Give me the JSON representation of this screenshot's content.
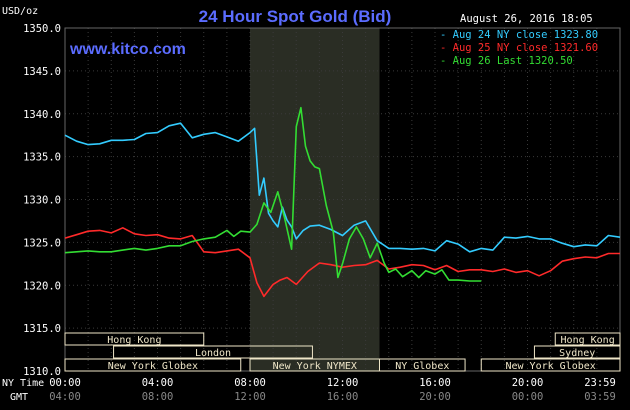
{
  "chart_data": {
    "type": "line",
    "title": "24 Hour Spot Gold (Bid)",
    "timestamp": "August 26, 2016 18:05",
    "watermark": "www.kitco.com",
    "y_unit_label": "USD/oz",
    "ylim": [
      1310,
      1350
    ],
    "y_ticks": [
      "1350.0",
      "1345.0",
      "1340.0",
      "1335.0",
      "1330.0",
      "1325.0",
      "1320.0",
      "1315.0",
      "1310.0"
    ],
    "x_axis_labels": {
      "row1_label": "NY Time",
      "row2_label": "GMT",
      "ny_time": [
        "00:00",
        "04:00",
        "08:00",
        "12:00",
        "16:00",
        "20:00",
        "23:59"
      ],
      "gmt": [
        "04:00",
        "08:00",
        "12:00",
        "16:00",
        "20:00",
        "00:00",
        "03:59"
      ]
    },
    "legend": [
      {
        "label": "Aug 24 NY close 1323.80",
        "color": "#33ccff"
      },
      {
        "label": "Aug 25 NY close 1321.60",
        "color": "#ff2a2a"
      },
      {
        "label": "Aug 26 Last 1320.50",
        "color": "#33dd33"
      }
    ],
    "sessions": {
      "row1": [
        "Hong Kong",
        "Hong Kong"
      ],
      "row2": [
        "London",
        "Sydney"
      ],
      "row3": [
        "New York Globex",
        "New York NYMEX",
        "NY Globex",
        "New York Globex"
      ]
    },
    "series": [
      {
        "name": "Aug 24",
        "color": "#33ccff",
        "x_hours": [
          0,
          0.5,
          1,
          1.5,
          2,
          2.5,
          3,
          3.5,
          4,
          4.5,
          5,
          5.5,
          6,
          6.5,
          7,
          7.5,
          8,
          8.2,
          8.4,
          8.6,
          8.8,
          9,
          9.2,
          9.4,
          9.6,
          9.8,
          10,
          10.3,
          10.6,
          11,
          11.5,
          12,
          12.5,
          13,
          13.5,
          14,
          14.5,
          15,
          15.5,
          16,
          16.5,
          17,
          17.5,
          18,
          18.5,
          19,
          19.5,
          20,
          20.5,
          21,
          21.5,
          22,
          22.5,
          23,
          23.5,
          24
        ],
        "values": [
          1337.5,
          1336.8,
          1336.4,
          1336.5,
          1336.9,
          1336.9,
          1337.0,
          1337.7,
          1337.8,
          1338.6,
          1338.9,
          1337.2,
          1337.6,
          1337.8,
          1337.3,
          1336.8,
          1337.8,
          1338.3,
          1330.5,
          1332.5,
          1328.4,
          1327.5,
          1326.8,
          1329.1,
          1327.6,
          1326.8,
          1325.4,
          1326.4,
          1326.9,
          1327.0,
          1326.5,
          1325.8,
          1327.0,
          1327.5,
          1325.2,
          1324.3,
          1324.3,
          1324.2,
          1324.3,
          1324.0,
          1325.2,
          1324.8,
          1323.9,
          1324.3,
          1324.1,
          1325.6,
          1325.5,
          1325.7,
          1325.4,
          1325.4,
          1324.9,
          1324.5,
          1324.7,
          1324.6,
          1325.8,
          1325.6
        ]
      },
      {
        "name": "Aug 25",
        "color": "#ff2a2a",
        "x_hours": [
          0,
          0.5,
          1,
          1.5,
          2,
          2.5,
          3,
          3.5,
          4,
          4.5,
          5,
          5.5,
          6,
          6.5,
          7,
          7.5,
          8,
          8.3,
          8.6,
          9,
          9.3,
          9.6,
          10,
          10.5,
          11,
          11.5,
          12,
          12.5,
          13,
          13.5,
          14,
          14.5,
          15,
          15.5,
          16,
          16.5,
          17,
          17.5,
          18,
          18.5,
          19,
          19.5,
          20,
          20.5,
          21,
          21.5,
          22,
          22.5,
          23,
          23.5,
          24
        ],
        "values": [
          1325.5,
          1325.9,
          1326.3,
          1326.4,
          1326.1,
          1326.7,
          1326.0,
          1325.8,
          1325.9,
          1325.5,
          1325.4,
          1325.8,
          1323.9,
          1323.8,
          1324.0,
          1324.2,
          1323.2,
          1320.3,
          1318.7,
          1320.1,
          1320.6,
          1320.9,
          1320.1,
          1321.6,
          1322.6,
          1322.4,
          1322.1,
          1322.3,
          1322.4,
          1322.9,
          1321.9,
          1322.1,
          1322.4,
          1322.3,
          1321.8,
          1322.3,
          1321.6,
          1321.8,
          1321.8,
          1321.6,
          1321.9,
          1321.5,
          1321.7,
          1321.1,
          1321.7,
          1322.8,
          1323.1,
          1323.3,
          1323.2,
          1323.7,
          1323.7
        ]
      },
      {
        "name": "Aug 26",
        "color": "#33dd33",
        "x_hours": [
          0,
          0.5,
          1,
          1.5,
          2,
          2.5,
          3,
          3.5,
          4,
          4.5,
          5,
          5.5,
          6,
          6.5,
          7,
          7.3,
          7.6,
          8,
          8.3,
          8.6,
          8.9,
          9.2,
          9.5,
          9.8,
          10,
          10.2,
          10.4,
          10.6,
          10.8,
          11,
          11.3,
          11.6,
          11.8,
          12,
          12.3,
          12.6,
          12.9,
          13.2,
          13.5,
          13.8,
          14,
          14.3,
          14.6,
          15,
          15.3,
          15.6,
          16,
          16.3,
          16.6,
          17,
          17.5,
          18
        ],
        "values": [
          1323.8,
          1323.9,
          1324.0,
          1323.9,
          1323.9,
          1324.1,
          1324.3,
          1324.1,
          1324.3,
          1324.6,
          1324.6,
          1325.1,
          1325.4,
          1325.6,
          1326.4,
          1325.7,
          1326.3,
          1326.2,
          1327.1,
          1329.6,
          1328.5,
          1330.9,
          1327.8,
          1324.2,
          1338.5,
          1340.7,
          1336.2,
          1334.5,
          1333.8,
          1333.6,
          1329.3,
          1326.2,
          1320.9,
          1322.5,
          1325.4,
          1326.8,
          1325.4,
          1323.2,
          1324.9,
          1322.6,
          1321.5,
          1321.9,
          1321.0,
          1321.7,
          1320.9,
          1321.7,
          1321.3,
          1321.8,
          1320.6,
          1320.6,
          1320.5,
          1320.5
        ]
      }
    ]
  },
  "colors": {
    "background": "#000000",
    "grid": "#3a3a3a",
    "title": "#5b6cff",
    "watermark": "#5b6cff",
    "text": "#ffffff",
    "session_box": "#efe6c8",
    "highlight_band": "#2a2d24"
  }
}
